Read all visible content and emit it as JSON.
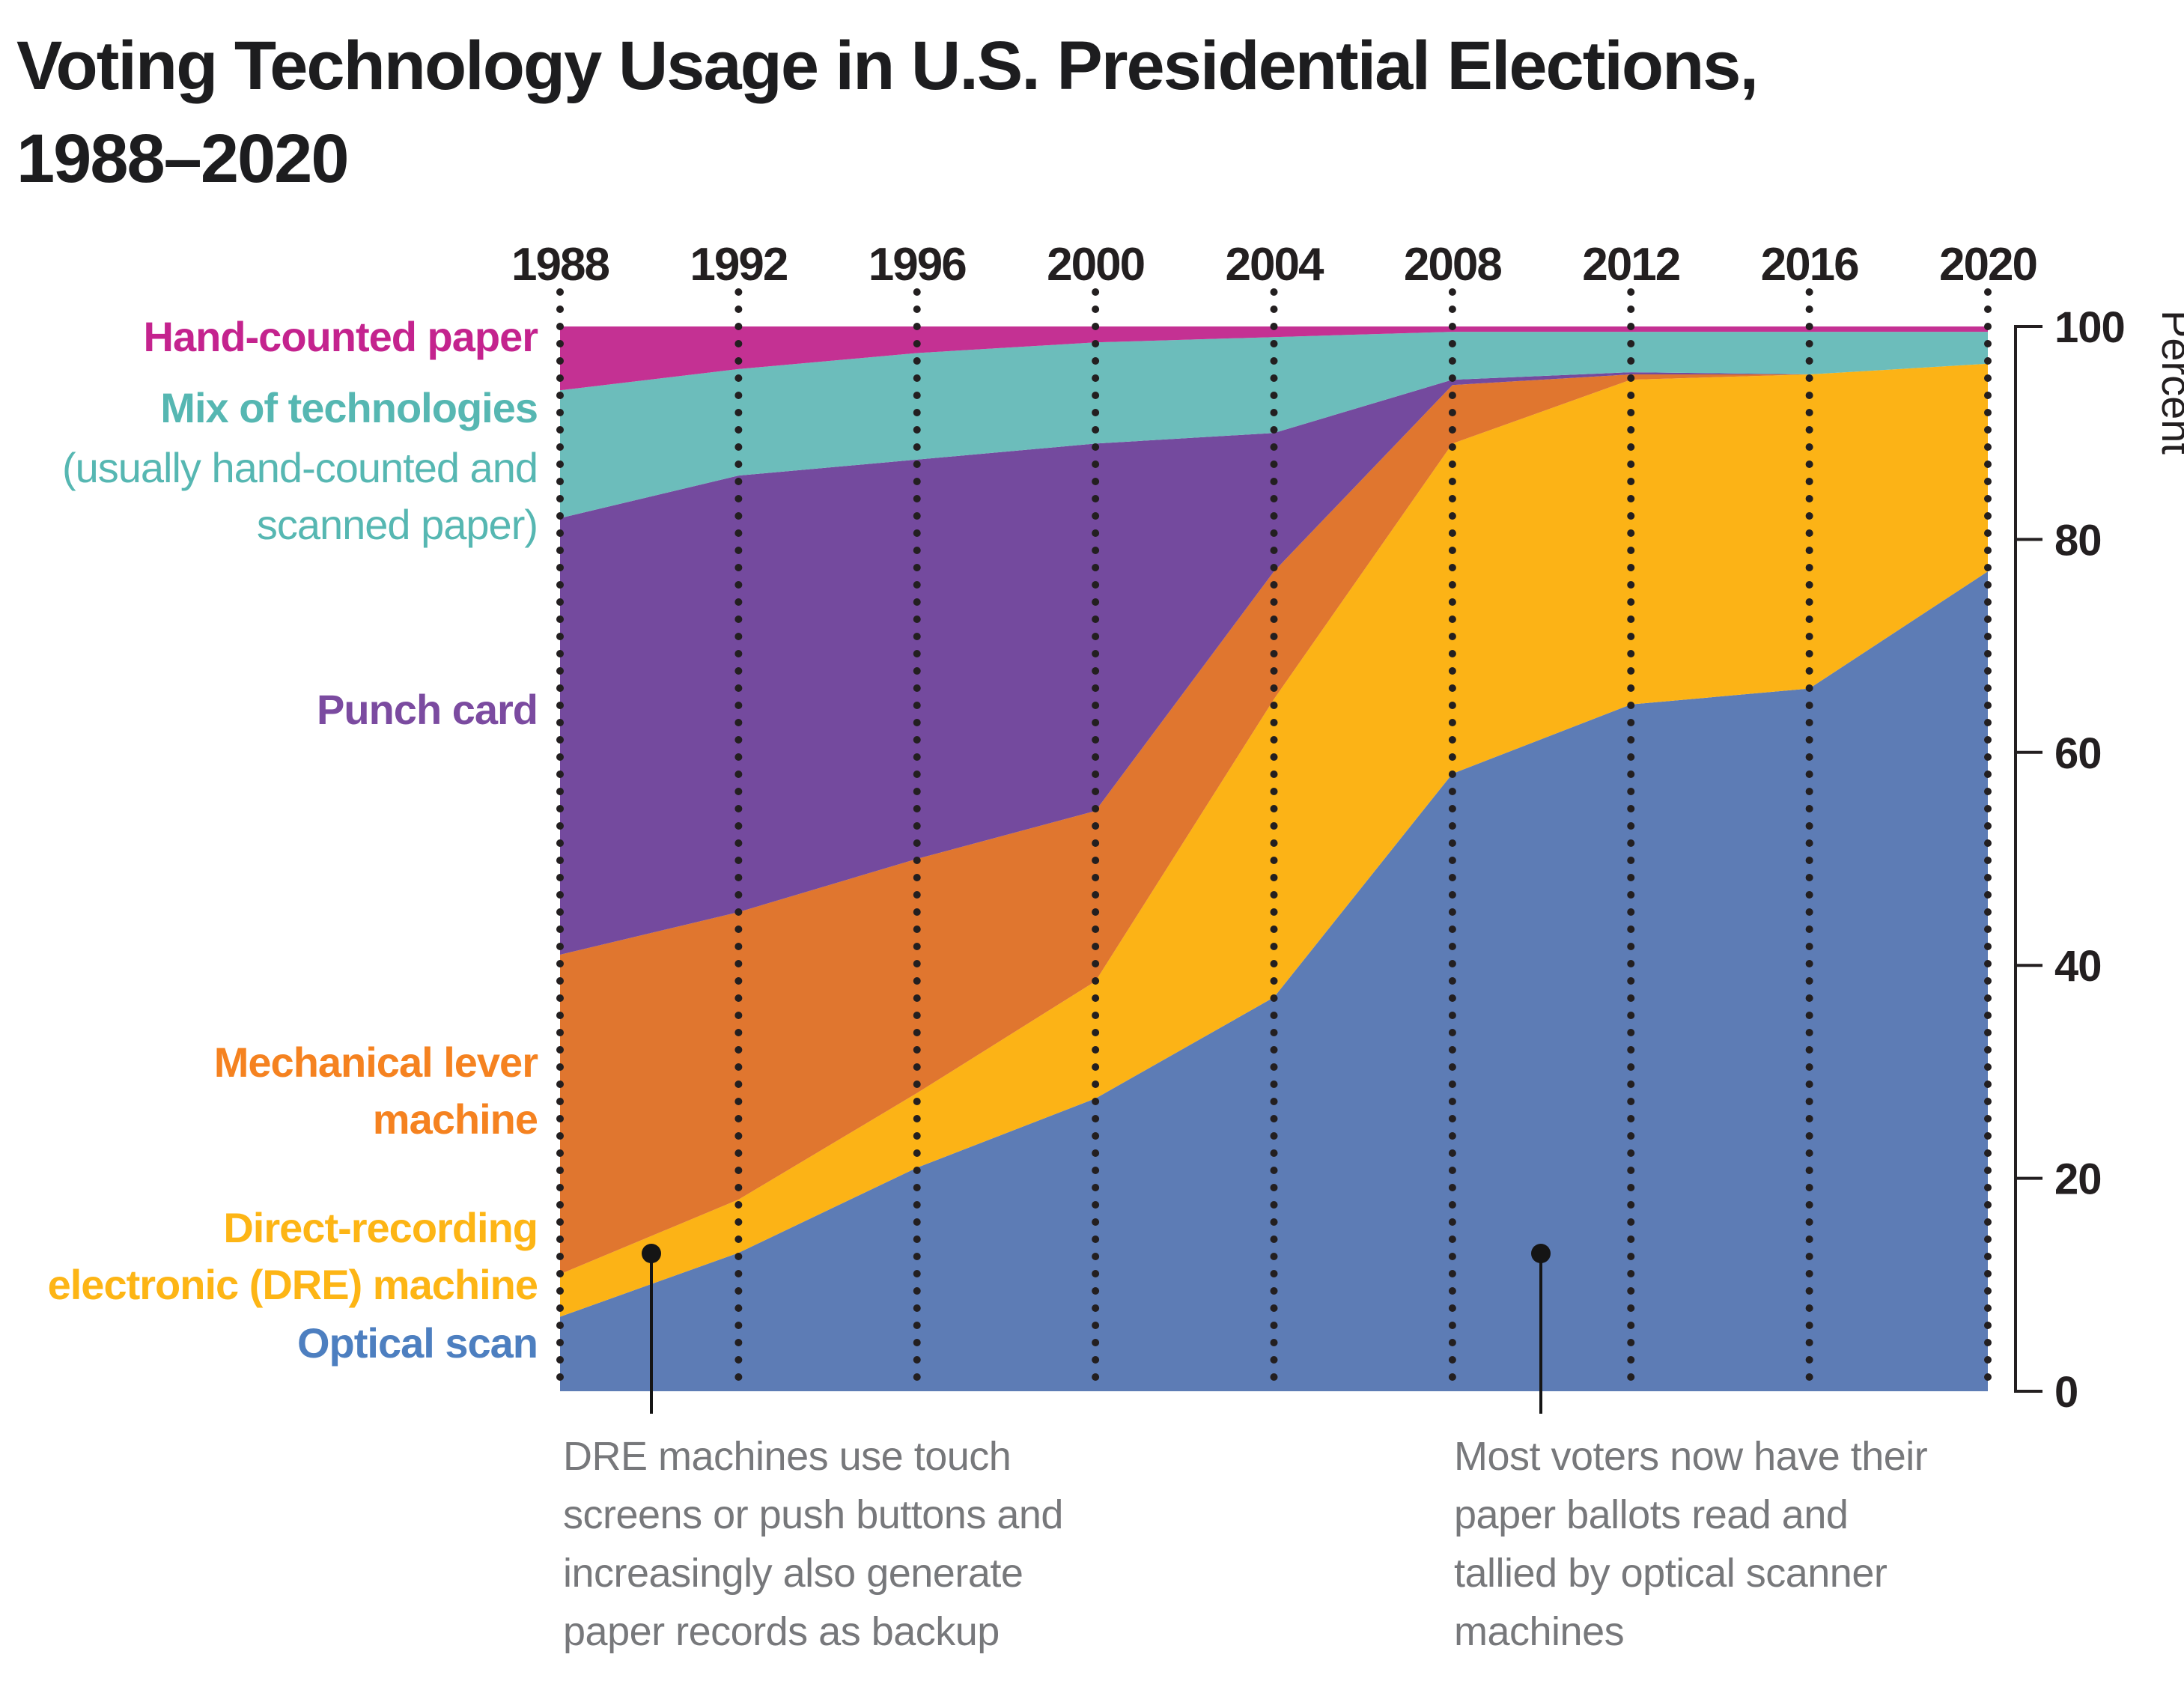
{
  "title": "Voting Technology Usage in U.S. Presidential Elections,\n1988–2020",
  "left_labels": {
    "hand": {
      "text": "Hand-counted paper",
      "color": "#c4238e"
    },
    "mix_main": {
      "text": "Mix of technologies",
      "color": "#56b7b2"
    },
    "mix_sub": {
      "text": "(usually hand-counted and\nscanned paper)",
      "color": "#56b7b2"
    },
    "punch": {
      "text": "Punch card",
      "color": "#7b4ba0"
    },
    "lever": {
      "text": "Mechanical lever\nmachine",
      "color": "#f58220"
    },
    "dre": {
      "text": "Direct-recording\nelectronic (DRE) machine",
      "color": "#fdb515"
    },
    "optical": {
      "text": "Optical scan",
      "color": "#4d7fc0"
    }
  },
  "annotations": [
    {
      "text": "DRE machines use touch\nscreens or push buttons and\nincreasingly also generate\npaper records as backup"
    },
    {
      "text": "Most voters now have their\npaper ballots read and\ntallied by optical scanner\nmachines"
    }
  ],
  "chart_data": {
    "type": "area",
    "stacked": true,
    "title": "Voting Technology Usage in U.S. Presidential Elections, 1988–2020",
    "categories": [
      "1988",
      "1992",
      "1996",
      "2000",
      "2004",
      "2008",
      "2012",
      "2016",
      "2020"
    ],
    "series": [
      {
        "name": "Optical scan",
        "color": "#5d7cb5",
        "values": [
          7,
          13,
          21,
          27.5,
          37,
          58,
          64.5,
          66,
          77
        ]
      },
      {
        "name": "Direct-recording electronic (DRE) machine",
        "color": "#fcb316",
        "values": [
          4,
          5,
          7,
          11,
          28,
          31,
          30.5,
          29.5,
          19.5
        ]
      },
      {
        "name": "Mechanical lever machine",
        "color": "#e0762f",
        "values": [
          30,
          27,
          22,
          16,
          12,
          5.5,
          0.5,
          0,
          0
        ]
      },
      {
        "name": "Punch card",
        "color": "#744a9e",
        "values": [
          41,
          41,
          37.5,
          34.5,
          13,
          0.5,
          0.2,
          0,
          0
        ]
      },
      {
        "name": "Mix of technologies (usually hand-counted and scanned paper)",
        "color": "#6cbdbb",
        "values": [
          12,
          10,
          10,
          9.5,
          9,
          4.5,
          3.8,
          4,
          3
        ]
      },
      {
        "name": "Hand-counted paper",
        "color": "#c43193",
        "values": [
          6,
          4,
          2.5,
          1.5,
          1,
          0.5,
          0.5,
          0.5,
          0.5
        ]
      }
    ],
    "xlabel": "",
    "ylabel": "Percent",
    "ylim": [
      0,
      100
    ],
    "yticks": [
      "0",
      "20",
      "40",
      "60",
      "80",
      "100"
    ],
    "grid": "dotted vertical lines at each election year",
    "legend_position": "left category labels colored by series"
  }
}
